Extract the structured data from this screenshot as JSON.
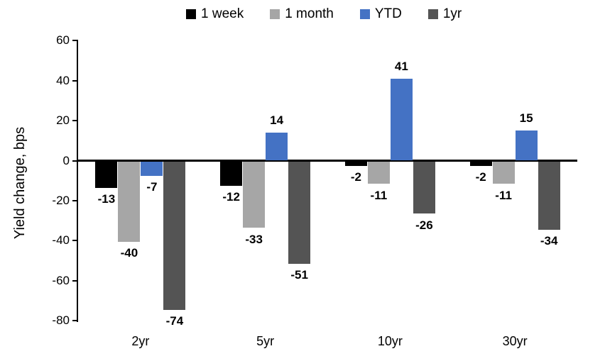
{
  "chart_data": {
    "type": "bar",
    "title": "",
    "ylabel": "Yield change, bps",
    "xlabel": "",
    "categories": [
      "2yr",
      "5yr",
      "10yr",
      "30yr"
    ],
    "series": [
      {
        "name": "1 week",
        "color": "#000000",
        "values": [
          -13,
          -12,
          -2,
          -2
        ]
      },
      {
        "name": "1 month",
        "color": "#A6A6A6",
        "values": [
          -40,
          -33,
          -11,
          -11
        ]
      },
      {
        "name": "YTD",
        "color": "#4472C4",
        "values": [
          -7,
          14,
          41,
          15
        ]
      },
      {
        "name": "1yr",
        "color": "#545454",
        "values": [
          -74,
          -51,
          -26,
          -34
        ]
      }
    ],
    "ylim": [
      -80,
      60
    ],
    "ytick_step": 20,
    "yticks": [
      60,
      40,
      20,
      0,
      -20,
      -40,
      -60,
      -80
    ],
    "grid": "off",
    "legend_position": "top",
    "data_labels": "outside-end"
  }
}
